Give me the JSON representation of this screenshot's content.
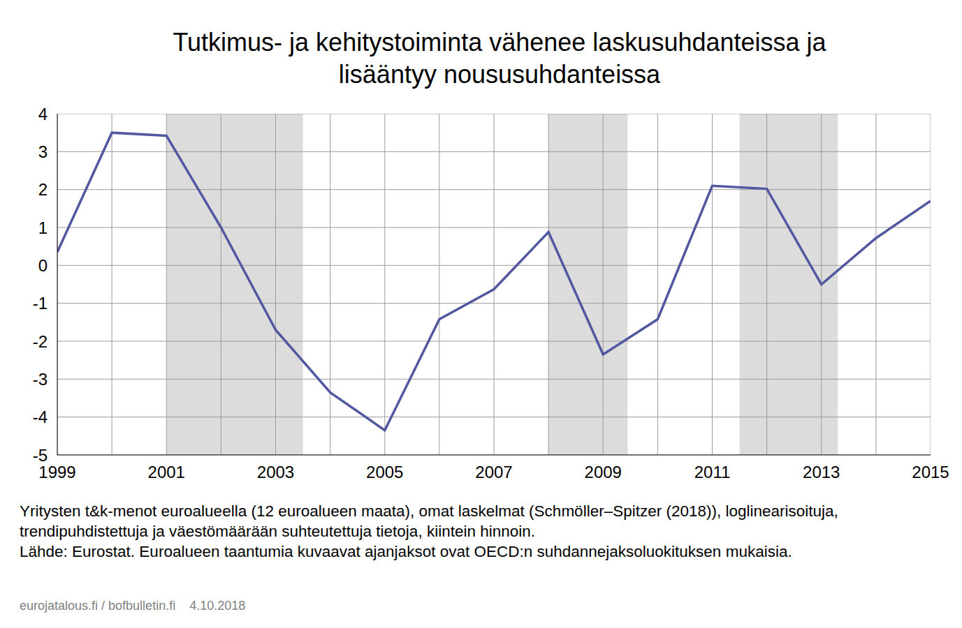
{
  "chart_data": {
    "type": "line",
    "title": "Tutkimus- ja kehitystoiminta vähenee laskusuhdanteissa ja lisääntyy noususuhdanteissa",
    "x": [
      1999,
      2000,
      2001,
      2002,
      2003,
      2004,
      2005,
      2006,
      2007,
      2008,
      2009,
      2010,
      2011,
      2012,
      2013,
      2014,
      2015
    ],
    "values": [
      0.35,
      3.5,
      3.42,
      1.0,
      -1.7,
      -3.35,
      -4.35,
      -1.42,
      -0.63,
      0.88,
      -2.35,
      -1.42,
      2.1,
      2.02,
      -0.5,
      0.72,
      1.7
    ],
    "color": "#5157a0",
    "recessions": [
      [
        2001,
        2003.5
      ],
      [
        2008,
        2009.45
      ],
      [
        2011.5,
        2013.3
      ]
    ],
    "xlim": [
      1999,
      2015
    ],
    "xticks": [
      1999,
      2001,
      2003,
      2005,
      2007,
      2009,
      2011,
      2013,
      2015
    ],
    "ylim": [
      -5,
      4
    ],
    "yticks": [
      -5,
      -4,
      -3,
      -2,
      -1,
      0,
      1,
      2,
      3,
      4
    ],
    "grid": true,
    "notes": [
      "Yritysten t&k-menot euroalueella (12 euroalueen maata), omat laskelmat (Schmöller–Spitzer (2018)), loglinearisoituja, trendipuhdistettuja ja väestömäärään suhteutettuja tietoja, kiintein hinnoin.",
      "Lähde: Eurostat. Euroalueen taantumia kuvaavat ajanjaksot ovat OECD:n suhdannejaksoluokituksen mukaisia."
    ],
    "source": "eurojatalous.fi / bofbulletin.fi    4.10.2018"
  }
}
